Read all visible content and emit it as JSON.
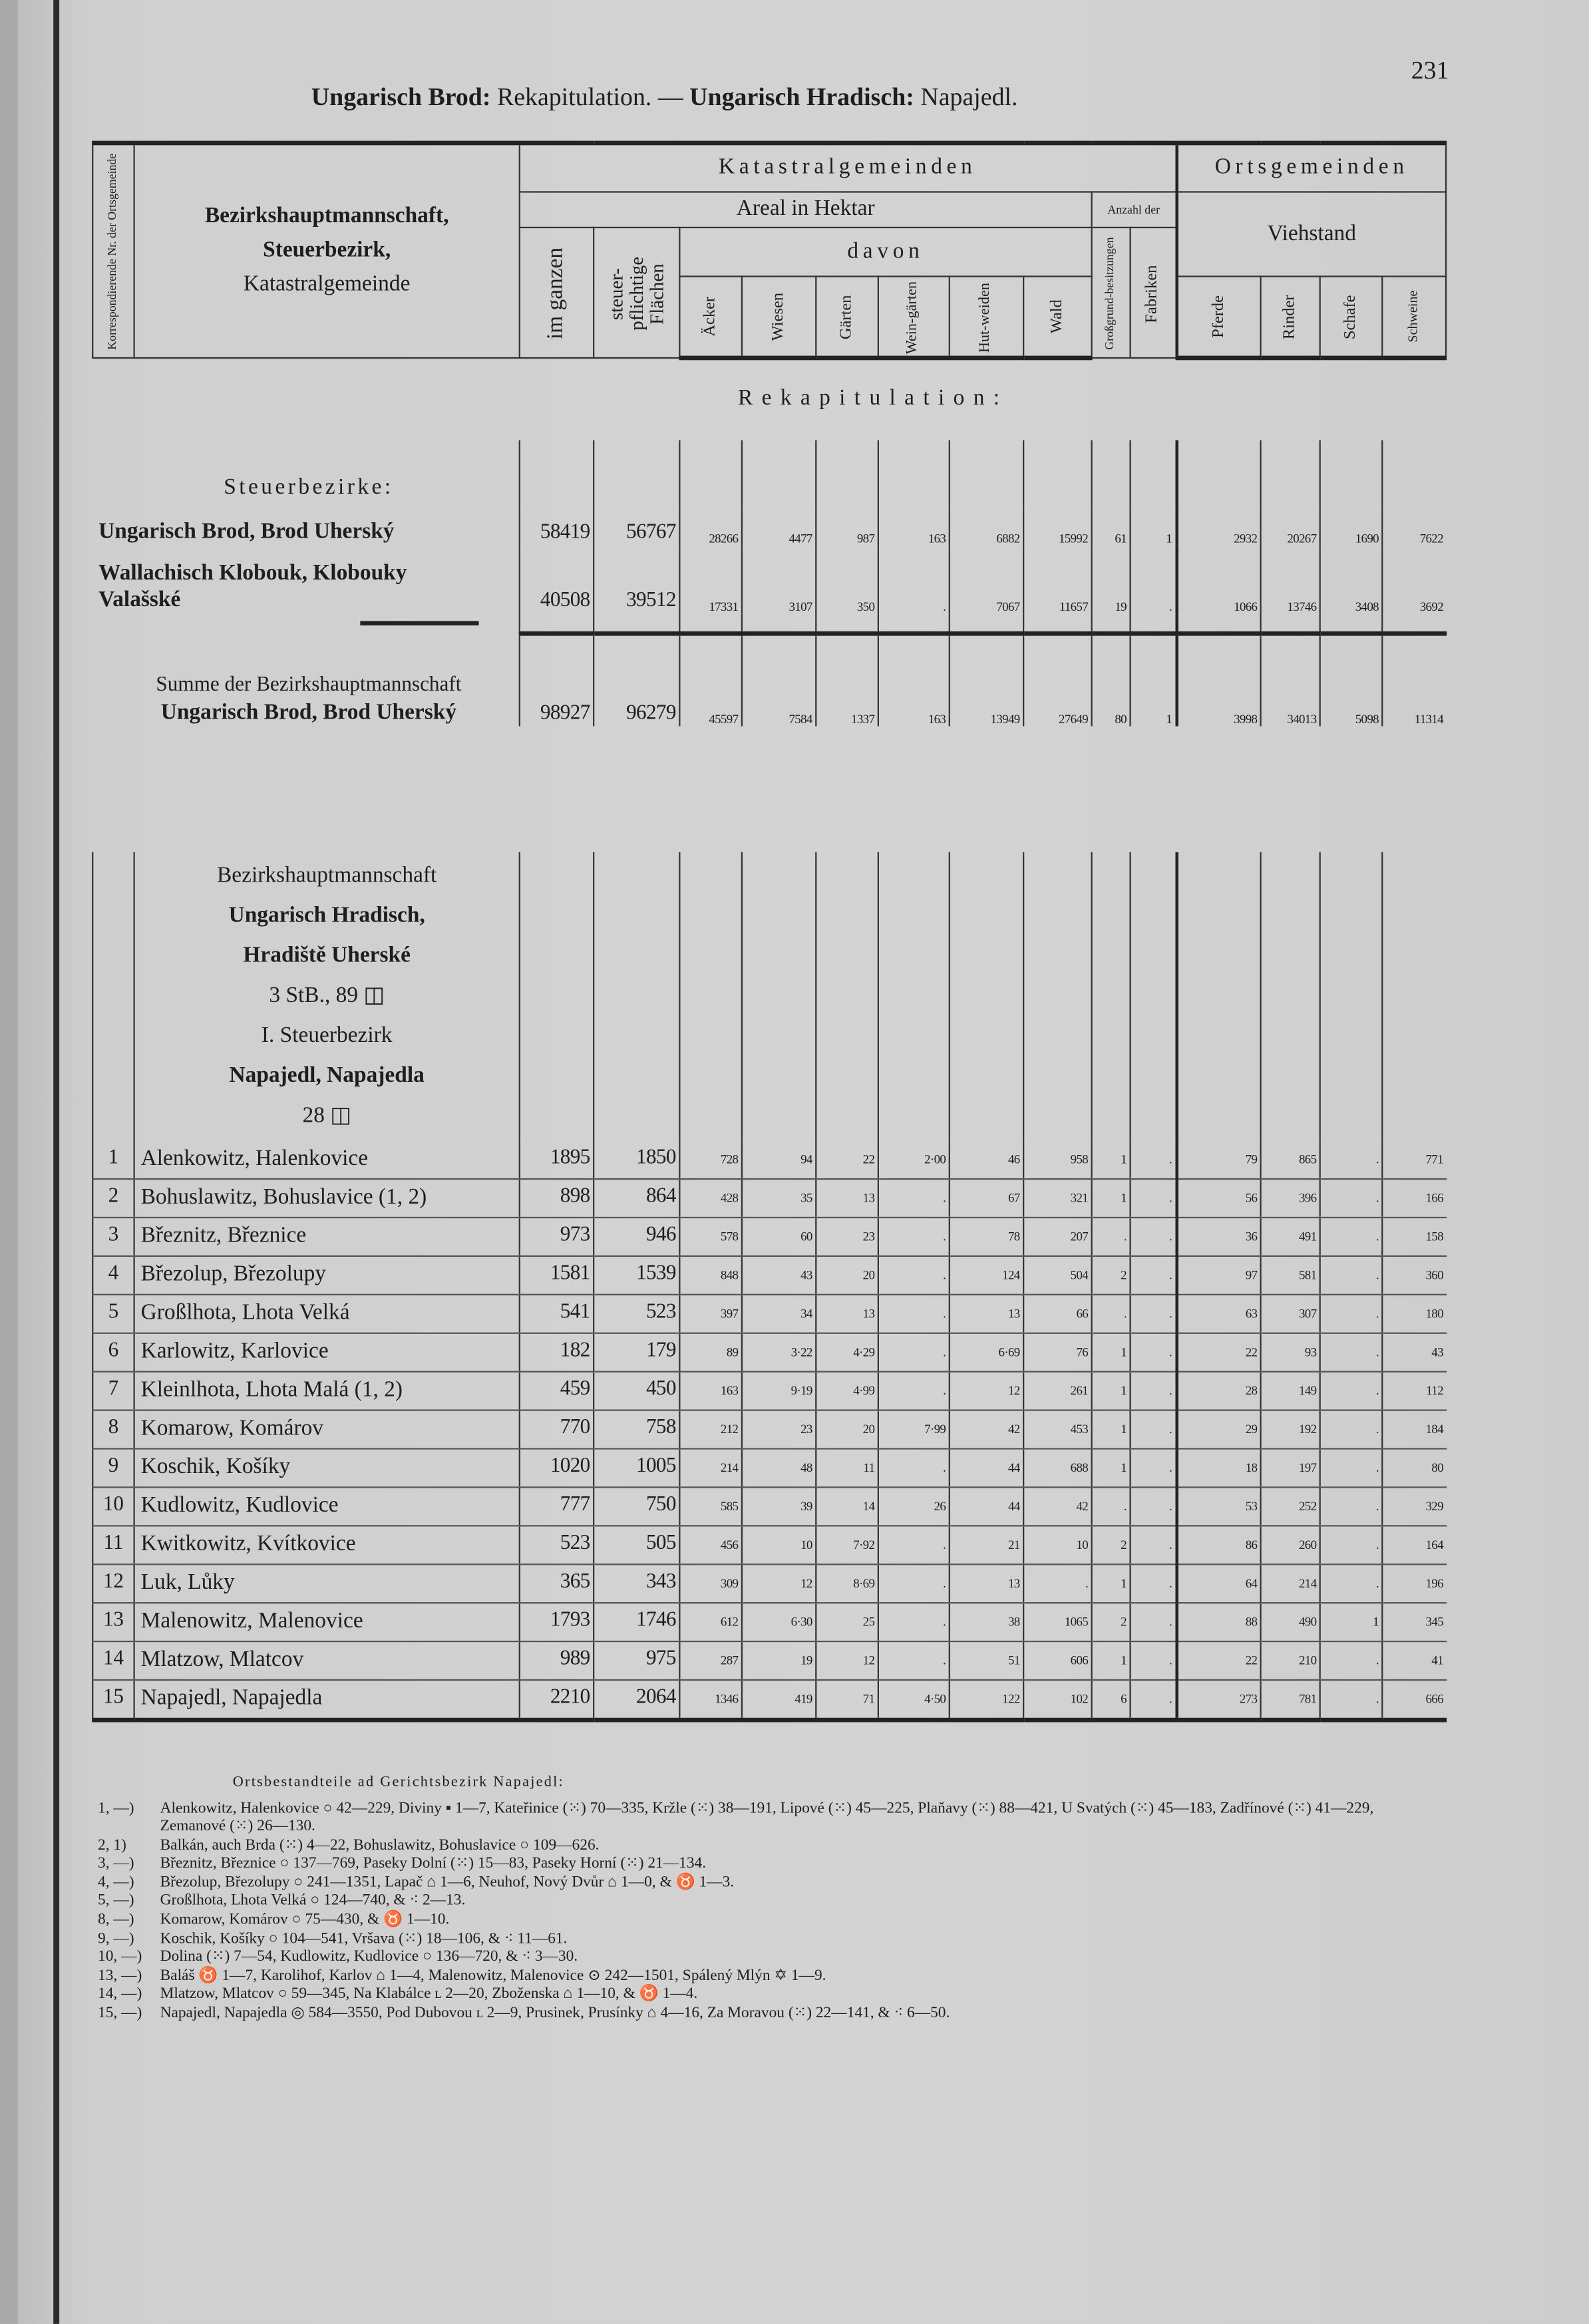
{
  "running_head": {
    "part1_bold": "Ungarisch Brod:",
    "part1": " Rekapitulation. — ",
    "part2_bold": "Ungarisch Hradisch:",
    "part2": " Napajedl."
  },
  "page_number": "231",
  "header": {
    "nr_label": "Korrespondierende Nr. der Ortsgemeinde",
    "name_label_1": "Bezirkshauptmannschaft,",
    "name_label_2": "Steuerbezirk,",
    "name_label_3": "Katastralgemeinde",
    "katastral": "Katastralgemeinden",
    "areal": "Areal in Hektar",
    "anzahl": "Anzahl der",
    "orts": "Ortsgemeinden",
    "viehstand": "Viehstand",
    "davon": "davon",
    "columns": [
      "im ganzen",
      "steuer-pflichtige Flächen",
      "Äcker",
      "Wiesen",
      "Gärten",
      "Wein-gärten",
      "Hut-weiden",
      "Wald",
      "Großgrund-besitzungen",
      "Fabriken",
      "Pferde",
      "Rinder",
      "Schafe",
      "Schweine"
    ]
  },
  "recap": {
    "title": "Rekapitulation:",
    "subtitle": "Steuerbezirke:",
    "rows": [
      {
        "name": [
          "Ungarisch Brod, Brod Uherský"
        ],
        "values": [
          "58419",
          "56767",
          "28266",
          "4477",
          "987",
          "163",
          "6882",
          "15992",
          "61",
          "1",
          "2932",
          "20267",
          "1690",
          "7622"
        ]
      },
      {
        "name": [
          "Wallachisch Klobouk, Klobouky",
          "Valašské"
        ],
        "values": [
          "40508",
          "39512",
          "17331",
          "3107",
          "350",
          ".",
          "7067",
          "11657",
          "19",
          ".",
          "1066",
          "13746",
          "3408",
          "3692"
        ]
      },
      {
        "name": [
          "Summe der Bezirkshauptmannschaft",
          "Ungarisch Brod, Brod Uherský"
        ],
        "values": [
          "98927",
          "96279",
          "45597",
          "7584",
          "1337",
          "163",
          "13949",
          "27649",
          "80",
          "1",
          "3998",
          "34013",
          "5098",
          "11314"
        ]
      }
    ]
  },
  "district": {
    "lines": [
      "Bezirkshauptmannschaft",
      "Ungarisch Hradisch,",
      "Hradiště Uherské",
      "3 StB., 89 ◫",
      "I. Steuerbezirk",
      "Napajedl, Napajedla",
      "28 ◫"
    ],
    "rows": [
      {
        "nr": "1",
        "name": "Alenkowitz, Halenkovice",
        "values": [
          "1895",
          "1850",
          "728",
          "94",
          "22",
          "2·00",
          "46",
          "958",
          "1",
          ".",
          "79",
          "865",
          ".",
          "771"
        ]
      },
      {
        "nr": "2",
        "name": "Bohuslawitz, Bohuslavice (1, 2)",
        "values": [
          "898",
          "864",
          "428",
          "35",
          "13",
          ".",
          "67",
          "321",
          "1",
          ".",
          "56",
          "396",
          ".",
          "166"
        ]
      },
      {
        "nr": "3",
        "name": "Březnitz, Březnice",
        "values": [
          "973",
          "946",
          "578",
          "60",
          "23",
          ".",
          "78",
          "207",
          ".",
          ".",
          "36",
          "491",
          ".",
          "158"
        ]
      },
      {
        "nr": "4",
        "name": "Březolup, Březolupy",
        "values": [
          "1581",
          "1539",
          "848",
          "43",
          "20",
          ".",
          "124",
          "504",
          "2",
          ".",
          "97",
          "581",
          ".",
          "360"
        ]
      },
      {
        "nr": "5",
        "name": "Großlhota, Lhota Velká",
        "values": [
          "541",
          "523",
          "397",
          "34",
          "13",
          ".",
          "13",
          "66",
          ".",
          ".",
          "63",
          "307",
          ".",
          "180"
        ]
      },
      {
        "nr": "6",
        "name": "Karlowitz, Karlovice",
        "values": [
          "182",
          "179",
          "89",
          "3·22",
          "4·29",
          ".",
          "6·69",
          "76",
          "1",
          ".",
          "22",
          "93",
          ".",
          "43"
        ]
      },
      {
        "nr": "7",
        "name": "Kleinlhota, Lhota Malá (1, 2)",
        "values": [
          "459",
          "450",
          "163",
          "9·19",
          "4·99",
          ".",
          "12",
          "261",
          "1",
          ".",
          "28",
          "149",
          ".",
          "112"
        ]
      },
      {
        "nr": "8",
        "name": "Komarow, Komárov",
        "values": [
          "770",
          "758",
          "212",
          "23",
          "20",
          "7·99",
          "42",
          "453",
          "1",
          ".",
          "29",
          "192",
          ".",
          "184"
        ]
      },
      {
        "nr": "9",
        "name": "Koschik, Košíky",
        "values": [
          "1020",
          "1005",
          "214",
          "48",
          "11",
          ".",
          "44",
          "688",
          "1",
          ".",
          "18",
          "197",
          ".",
          "80"
        ]
      },
      {
        "nr": "10",
        "name": "Kudlowitz, Kudlovice",
        "values": [
          "777",
          "750",
          "585",
          "39",
          "14",
          "26",
          "44",
          "42",
          ".",
          ".",
          "53",
          "252",
          ".",
          "329"
        ]
      },
      {
        "nr": "11",
        "name": "Kwitkowitz, Kvítkovice",
        "values": [
          "523",
          "505",
          "456",
          "10",
          "7·92",
          ".",
          "21",
          "10",
          "2",
          ".",
          "86",
          "260",
          ".",
          "164"
        ]
      },
      {
        "nr": "12",
        "name": "Luk, Lůky",
        "values": [
          "365",
          "343",
          "309",
          "12",
          "8·69",
          ".",
          "13",
          ".",
          "1",
          ".",
          "64",
          "214",
          ".",
          "196"
        ]
      },
      {
        "nr": "13",
        "name": "Malenowitz, Malenovice",
        "values": [
          "1793",
          "1746",
          "612",
          "6·30",
          "25",
          ".",
          "38",
          "1065",
          "2",
          ".",
          "88",
          "490",
          "1",
          "345"
        ]
      },
      {
        "nr": "14",
        "name": "Mlatzow, Mlatcov",
        "values": [
          "989",
          "975",
          "287",
          "19",
          "12",
          ".",
          "51",
          "606",
          "1",
          ".",
          "22",
          "210",
          ".",
          "41"
        ]
      },
      {
        "nr": "15",
        "name": "Napajedl, Napajedla",
        "values": [
          "2210",
          "2064",
          "1346",
          "419",
          "71",
          "4·50",
          "122",
          "102",
          "6",
          ".",
          "273",
          "781",
          ".",
          "666"
        ]
      }
    ]
  },
  "footnotes": {
    "heading": "Ortsbestandteile ad Gerichtsbezirk Napajedl:",
    "items": [
      {
        "key": "1, —)",
        "text": "Alenkowitz, Halenkovice ○ 42—229, Diviny ▪ 1—7, Kateřinice (⁙) 70—335, Kržle (⁙) 38—191, Lipové (⁙) 45—225, Plaňavy (⁙) 88—421, U Svatých (⁙) 45—183, Zadřínové (⁙) 41—229, Zemanové (⁙) 26—130."
      },
      {
        "key": "2, 1)",
        "text": "Balkán, auch Brda (⁙) 4—22, Bohuslawitz, Bohuslavice ○ 109—626."
      },
      {
        "key": "3, —)",
        "text": "Březnitz, Březnice ○ 137—769, Paseky Dolní (⁙) 15—83, Paseky Horní (⁙) 21—134."
      },
      {
        "key": "4, —)",
        "text": "Březolup, Březolupy ○ 241—1351, Lapač ⌂ 1—6, Neuhof, Nový Dvůr ⌂ 1—0, & ♉ 1—3."
      },
      {
        "key": "5, —)",
        "text": "Großlhota, Lhota Velká ○ 124—740, & ⁖ 2—13."
      },
      {
        "key": "8, —)",
        "text": "Komarow, Komárov ○ 75—430, & ♉ 1—10."
      },
      {
        "key": "9, —)",
        "text": "Koschik, Košíky ○ 104—541, Vršava (⁙) 18—106, & ⁖ 11—61."
      },
      {
        "key": "10, —)",
        "text": "Dolina (⁙) 7—54, Kudlowitz, Kudlovice ○ 136—720, & ⁖ 3—30."
      },
      {
        "key": "13, —)",
        "text": "Baláš ♉ 1—7, Karolihof, Karlov ⌂ 1—4, Malenowitz, Malenovice ⊙ 242—1501, Spálený Mlýn ✡ 1—9."
      },
      {
        "key": "14, —)",
        "text": "Mlatzow, Mlatcov ○ 59—345, Na Klabálce ʟ 2—20, Zboženska ⌂ 1—10, & ♉ 1—4."
      },
      {
        "key": "15, —)",
        "text": "Napajedl, Napajedla ◎ 584—3550, Pod Dubovou ʟ 2—9, Prusinek, Prusínky ⌂ 4—16, Za Moravou (⁙) 22—141, & ⁖ 6—50."
      }
    ]
  }
}
